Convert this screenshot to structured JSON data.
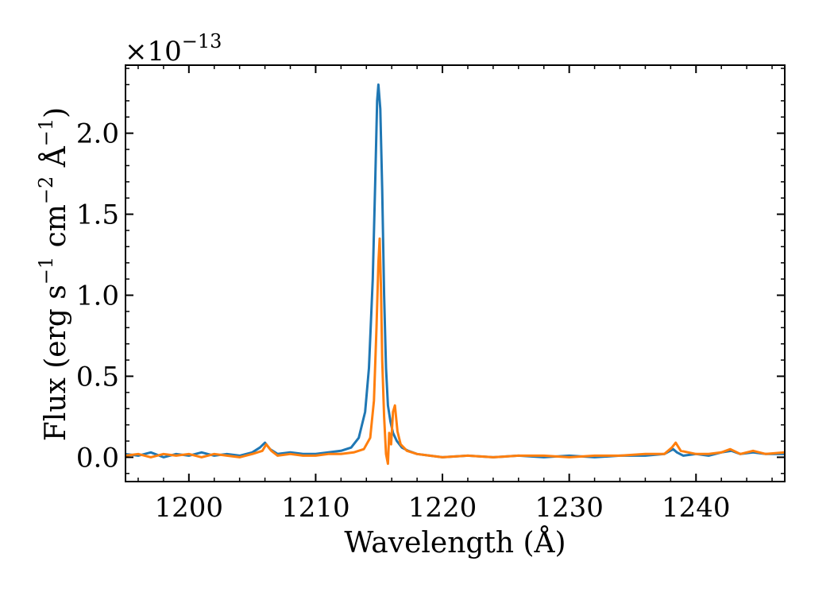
{
  "chart_data": {
    "type": "line",
    "xlabel": "Wavelength (Å)",
    "ylabel": {
      "prefix": "Flux (erg s",
      "exp1": "−1",
      "mid": " cm",
      "exp2": "−2",
      "mid2": " Å",
      "exp3": "−1",
      "suffix": ")"
    },
    "offset": {
      "base": "×10",
      "exp": "−13"
    },
    "xlim": [
      1195,
      1247
    ],
    "ylim": [
      -0.15,
      2.42
    ],
    "x_ticks": [
      1200,
      1210,
      1220,
      1230,
      1240
    ],
    "x_tick_labels": [
      "1200",
      "1210",
      "1220",
      "1230",
      "1240"
    ],
    "y_ticks": [
      0.0,
      0.5,
      1.0,
      1.5,
      2.0
    ],
    "y_tick_labels": [
      "0.0",
      "0.5",
      "1.0",
      "1.5",
      "2.0"
    ],
    "grid": false,
    "series": [
      {
        "color": "#1f77b4",
        "x": [
          1195,
          1196,
          1197,
          1198,
          1199,
          1200,
          1201,
          1202,
          1203,
          1204,
          1205,
          1205.6,
          1206,
          1206.4,
          1207,
          1208,
          1209,
          1210,
          1211,
          1212,
          1212.8,
          1213.4,
          1213.9,
          1214.2,
          1214.5,
          1214.7,
          1214.85,
          1214.95,
          1215.1,
          1215.25,
          1215.4,
          1215.55,
          1215.7,
          1215.9,
          1216.1,
          1216.4,
          1216.8,
          1217.3,
          1218,
          1219,
          1220,
          1222,
          1224,
          1226,
          1228,
          1230,
          1232,
          1234,
          1236,
          1237.5,
          1238.2,
          1238.5,
          1239,
          1240,
          1241,
          1242,
          1242.8,
          1243.5,
          1244.5,
          1245.5,
          1247
        ],
        "y": [
          0.02,
          0.01,
          0.03,
          0.0,
          0.02,
          0.01,
          0.03,
          0.01,
          0.02,
          0.01,
          0.03,
          0.06,
          0.09,
          0.05,
          0.02,
          0.03,
          0.02,
          0.02,
          0.03,
          0.04,
          0.06,
          0.12,
          0.28,
          0.55,
          1.1,
          1.7,
          2.2,
          2.3,
          2.15,
          1.65,
          1.0,
          0.55,
          0.32,
          0.22,
          0.15,
          0.1,
          0.06,
          0.04,
          0.02,
          0.01,
          0.0,
          0.01,
          0.0,
          0.01,
          0.0,
          0.01,
          0.0,
          0.01,
          0.01,
          0.02,
          0.05,
          0.03,
          0.01,
          0.02,
          0.01,
          0.03,
          0.04,
          0.02,
          0.03,
          0.02,
          0.02
        ]
      },
      {
        "color": "#ff7f0e",
        "x": [
          1195,
          1196,
          1197,
          1198,
          1199,
          1200,
          1201,
          1202,
          1203,
          1204,
          1205,
          1205.8,
          1206.1,
          1206.5,
          1207,
          1208,
          1209,
          1210,
          1211,
          1212,
          1213,
          1213.8,
          1214.3,
          1214.6,
          1214.8,
          1214.95,
          1215.05,
          1215.15,
          1215.25,
          1215.4,
          1215.55,
          1215.7,
          1215.8,
          1215.95,
          1216.1,
          1216.25,
          1216.45,
          1216.7,
          1217.2,
          1218,
          1219,
          1220,
          1222,
          1224,
          1226,
          1228,
          1230,
          1232,
          1234,
          1236,
          1237.5,
          1238.1,
          1238.4,
          1238.8,
          1240,
          1241,
          1242,
          1242.7,
          1243.5,
          1244.5,
          1245.5,
          1247
        ],
        "y": [
          0.01,
          0.02,
          0.0,
          0.02,
          0.01,
          0.02,
          0.0,
          0.02,
          0.01,
          0.0,
          0.02,
          0.04,
          0.08,
          0.04,
          0.01,
          0.02,
          0.01,
          0.01,
          0.02,
          0.02,
          0.03,
          0.05,
          0.12,
          0.35,
          0.8,
          1.2,
          1.35,
          1.05,
          0.6,
          0.25,
          0.02,
          -0.04,
          0.15,
          0.08,
          0.28,
          0.32,
          0.16,
          0.08,
          0.04,
          0.02,
          0.01,
          0.0,
          0.01,
          0.0,
          0.01,
          0.01,
          0.0,
          0.01,
          0.01,
          0.02,
          0.02,
          0.06,
          0.09,
          0.04,
          0.02,
          0.02,
          0.03,
          0.05,
          0.02,
          0.04,
          0.02,
          0.03
        ]
      }
    ]
  }
}
